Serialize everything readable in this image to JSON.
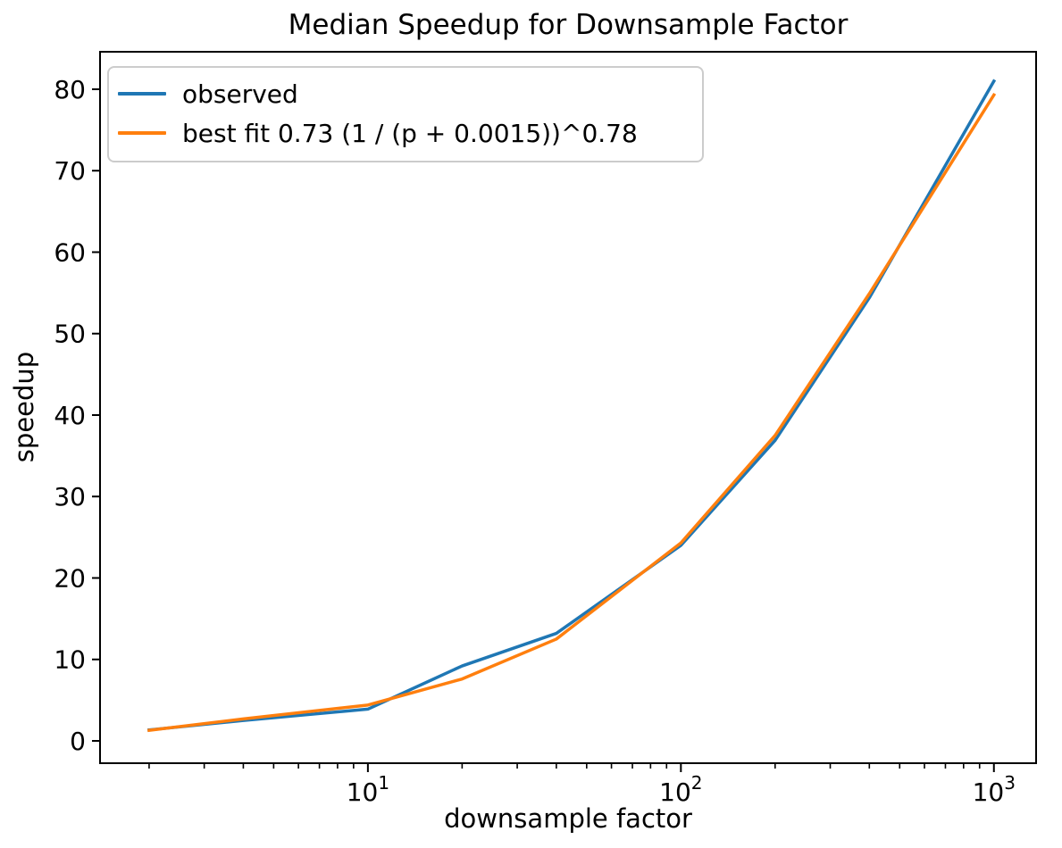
{
  "figure": {
    "title": "Median Speedup for Downsample Factor",
    "xlabel": "downsample factor",
    "ylabel": "speedup"
  },
  "legend": {
    "position": "upper left",
    "items": [
      {
        "label": "observed",
        "color": "#1f77b4"
      },
      {
        "label": "best fit 0.73 (1 / (p + 0.0015))^0.78",
        "color": "#ff7f0e"
      }
    ]
  },
  "chart_data": {
    "type": "line",
    "title": "Median Speedup for Downsample Factor",
    "xlabel": "downsample factor",
    "ylabel": "speedup",
    "x_scale": "log",
    "grid": false,
    "legend_position": "upper left",
    "x": [
      2,
      4,
      10,
      20,
      40,
      100,
      200,
      400,
      1000
    ],
    "series": [
      {
        "name": "observed",
        "color": "#1f77b4",
        "values": [
          1.35,
          2.5,
          3.9,
          9.2,
          13.2,
          24.0,
          36.9,
          54.4,
          81.0
        ]
      },
      {
        "name": "best fit 0.73 (1 / (p + 0.0015))^0.78",
        "color": "#ff7f0e",
        "values": [
          1.3,
          2.7,
          4.4,
          7.6,
          12.5,
          24.3,
          37.5,
          54.9,
          79.3
        ]
      }
    ],
    "xlim": [
      1.394,
      1364
    ],
    "ylim": [
      -2.74,
      84.6
    ],
    "x_ticks": [
      {
        "value": 10,
        "label": "10^1"
      },
      {
        "value": 100,
        "label": "10^2"
      },
      {
        "value": 1000,
        "label": "10^3"
      }
    ],
    "x_minor_ticks": [
      2,
      3,
      4,
      5,
      6,
      7,
      8,
      9,
      20,
      30,
      40,
      50,
      60,
      70,
      80,
      90,
      200,
      300,
      400,
      500,
      600,
      700,
      800,
      900
    ],
    "y_ticks": [
      0,
      10,
      20,
      30,
      40,
      50,
      60,
      70,
      80
    ],
    "axis_color": "#000000",
    "background_color": "#ffffff"
  }
}
